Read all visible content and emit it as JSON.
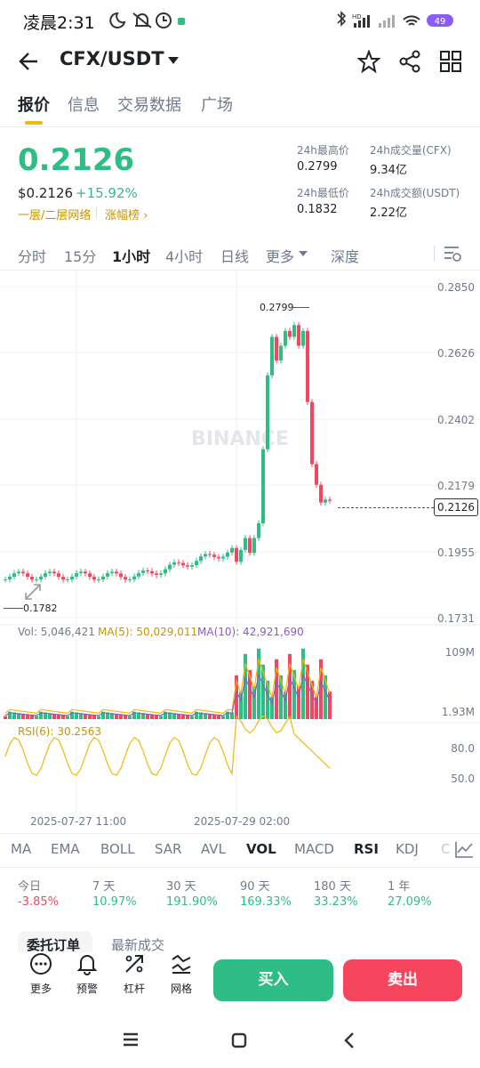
{
  "status": {
    "time": "凌晨2:31",
    "battery": "49"
  },
  "header": {
    "pair": "CFX/USDT"
  },
  "tabs": [
    "报价",
    "信息",
    "交易数据",
    "广场"
  ],
  "price": {
    "last": "0.2126",
    "usd": "$0.2126",
    "change": "+15.92%",
    "network": "一层/二层网络",
    "ranking": "涨幅榜 ›"
  },
  "stats": {
    "high_label": "24h最高价",
    "high_value": "0.2799",
    "low_label": "24h最低价",
    "low_value": "0.1832",
    "vol_label": "24h成交量(CFX)",
    "vol_value": "9.34亿",
    "amt_label": "24h成交额(USDT)",
    "amt_value": "2.22亿"
  },
  "intervals": [
    "分时",
    "15分",
    "1小时",
    "4小时",
    "日线",
    "更多",
    "深度"
  ],
  "chart": {
    "y_labels": [
      "0.2850",
      "0.2626",
      "0.2402",
      "0.2179",
      "0.1955",
      "0.1731"
    ],
    "current_price": "0.2126",
    "max_label": "0.2799",
    "min_label": "0.1782",
    "watermark": "BINANCE",
    "vol_legend": "Vol: 5,046,421",
    "ma5_legend": "MA(5): 50,029,011",
    "ma10_legend": "MA(10): 42,921,690",
    "vol_max": "109M",
    "vol_min": "1.93M",
    "rsi_legend": "RSI(6): 30.2563",
    "rsi_80": "80.0",
    "rsi_50": "50.0",
    "date1": "2025-07-27 11:00",
    "date2": "2025-07-29 02:00",
    "colors": {
      "up": "#2ebd85",
      "down": "#f6465d",
      "ma5": "#f0b90b",
      "ma10": "#8b5cc0"
    }
  },
  "indicators": [
    "MA",
    "EMA",
    "BOLL",
    "SAR",
    "AVL",
    "VOL",
    "MACD",
    "RSI",
    "KDJ",
    "C"
  ],
  "performance": [
    {
      "label": "今日",
      "value": "-3.85%"
    },
    {
      "label": "7 天",
      "value": "10.97%"
    },
    {
      "label": "30 天",
      "value": "191.90%"
    },
    {
      "label": "90 天",
      "value": "169.33%"
    },
    {
      "label": "180 天",
      "value": "33.23%"
    },
    {
      "label": "1 年",
      "value": "27.09%"
    }
  ],
  "order_tabs": [
    "委托订单",
    "最新成交"
  ],
  "actions": [
    {
      "label": "更多",
      "icon": "more-icon"
    },
    {
      "label": "预警",
      "icon": "bell-icon"
    },
    {
      "label": "杠杆",
      "icon": "leverage-icon"
    },
    {
      "label": "网格",
      "icon": "grid-icon"
    }
  ],
  "buy_label": "买入",
  "sell_label": "卖出"
}
